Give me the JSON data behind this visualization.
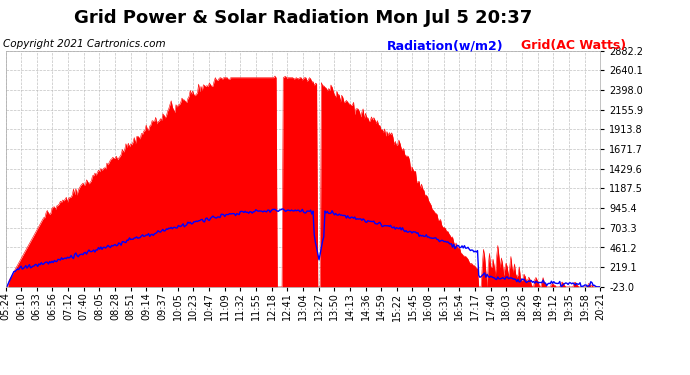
{
  "title": "Grid Power & Solar Radiation Mon Jul 5 20:37",
  "copyright": "Copyright 2021 Cartronics.com",
  "legend_radiation": "Radiation(w/m2)",
  "legend_grid": "Grid(AC Watts)",
  "yticks": [
    -23.0,
    219.1,
    461.2,
    703.3,
    945.4,
    1187.5,
    1429.6,
    1671.7,
    1913.8,
    2155.9,
    2398.0,
    2640.1,
    2882.2
  ],
  "ymin": -23.0,
  "ymax": 2882.2,
  "plot_bg_color": "#ffffff",
  "grid_color": "#bbbbbb",
  "fill_color": "#ff0000",
  "line_color": "#0000ff",
  "title_fontsize": 13,
  "label_fontsize": 7,
  "copyright_fontsize": 7.5,
  "legend_fontsize": 9,
  "xtick_labels": [
    "05:24",
    "06:10",
    "06:33",
    "06:56",
    "07:12",
    "07:40",
    "08:05",
    "08:28",
    "08:51",
    "09:14",
    "09:37",
    "10:05",
    "10:23",
    "10:47",
    "11:09",
    "11:32",
    "11:55",
    "12:18",
    "12:41",
    "13:04",
    "13:27",
    "13:50",
    "14:13",
    "14:36",
    "14:59",
    "15:22",
    "15:45",
    "16:08",
    "16:31",
    "16:54",
    "17:17",
    "17:40",
    "18:03",
    "18:26",
    "18:49",
    "19:12",
    "19:35",
    "19:58",
    "20:21"
  ]
}
